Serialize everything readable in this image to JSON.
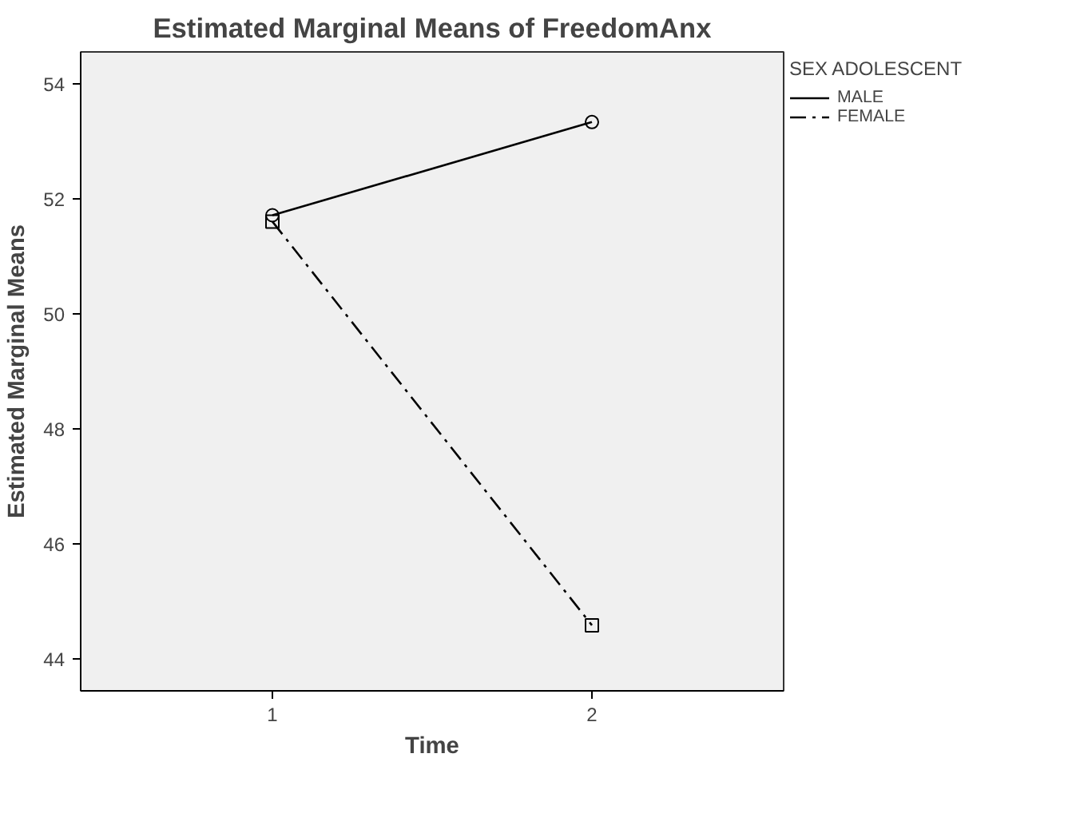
{
  "chart_data": {
    "type": "line",
    "title": "Estimated Marginal Means of FreedomAnx",
    "xlabel": "Time",
    "ylabel": "Estimated Marginal Means",
    "legend_title": "SEX ADOLESCENT",
    "categories": [
      "1",
      "2"
    ],
    "series": [
      {
        "name": "MALE",
        "color": "#000000",
        "values": [
          51.72,
          53.34
        ],
        "marker": "circle",
        "line_style": "solid"
      },
      {
        "name": "FEMALE",
        "color": "#000000",
        "values": [
          51.61,
          44.59
        ],
        "marker": "square",
        "line_style": "dashdot"
      }
    ],
    "ylim": [
      43.45,
      54.56
    ],
    "yticks": [
      44,
      46,
      48,
      50,
      52,
      54
    ],
    "grid": false,
    "legend": "right"
  }
}
